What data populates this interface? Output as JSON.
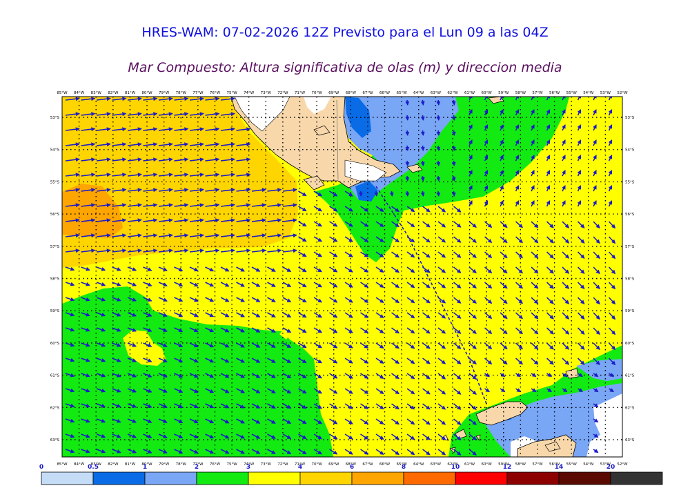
{
  "header": {
    "title": "HRES-WAM: 07-02-2026 12Z Previsto para el Lun 09 a las 04Z",
    "subtitle": "Mar Compuesto: Altura significativa de olas (m) y direccion media"
  },
  "map": {
    "lon_labels": [
      "85°W",
      "84°W",
      "83°W",
      "82°W",
      "81°W",
      "80°W",
      "79°W",
      "78°W",
      "77°W",
      "76°W",
      "75°W",
      "74°W",
      "73°W",
      "72°W",
      "71°W",
      "70°W",
      "69°W",
      "68°W",
      "67°W",
      "66°W",
      "65°W",
      "64°W",
      "63°W",
      "62°W",
      "61°W",
      "60°W",
      "59°W",
      "58°W",
      "57°W",
      "56°W",
      "55°W",
      "54°W",
      "53°W",
      "52°W"
    ],
    "lat_labels": [
      "53°S",
      "54°S",
      "55°S",
      "56°S",
      "57°S",
      "58°S",
      "59°S",
      "60°S",
      "61°S",
      "62°S",
      "63°S"
    ],
    "lon_range": [
      -85,
      -52
    ],
    "lat_range": [
      -52.3,
      -63.6
    ]
  },
  "legend": {
    "ticks": [
      "0",
      "0.5",
      "1",
      "2",
      "3",
      "4",
      "6",
      "8",
      "10",
      "12",
      "14",
      "20"
    ],
    "colors": [
      "#c5dcf7",
      "#0a6be6",
      "#79a6f5",
      "#12ea12",
      "#ffff00",
      "#ffd500",
      "#ffa500",
      "#ff6a00",
      "#ff0000",
      "#8c0000",
      "#5a0a00",
      "#333333"
    ]
  },
  "colors": {
    "land": "#f8d8ab",
    "ice": "#ffffff",
    "arrow": "#1c1cc8",
    "title": "#1010e0",
    "subtitle": "#5a1060"
  }
}
